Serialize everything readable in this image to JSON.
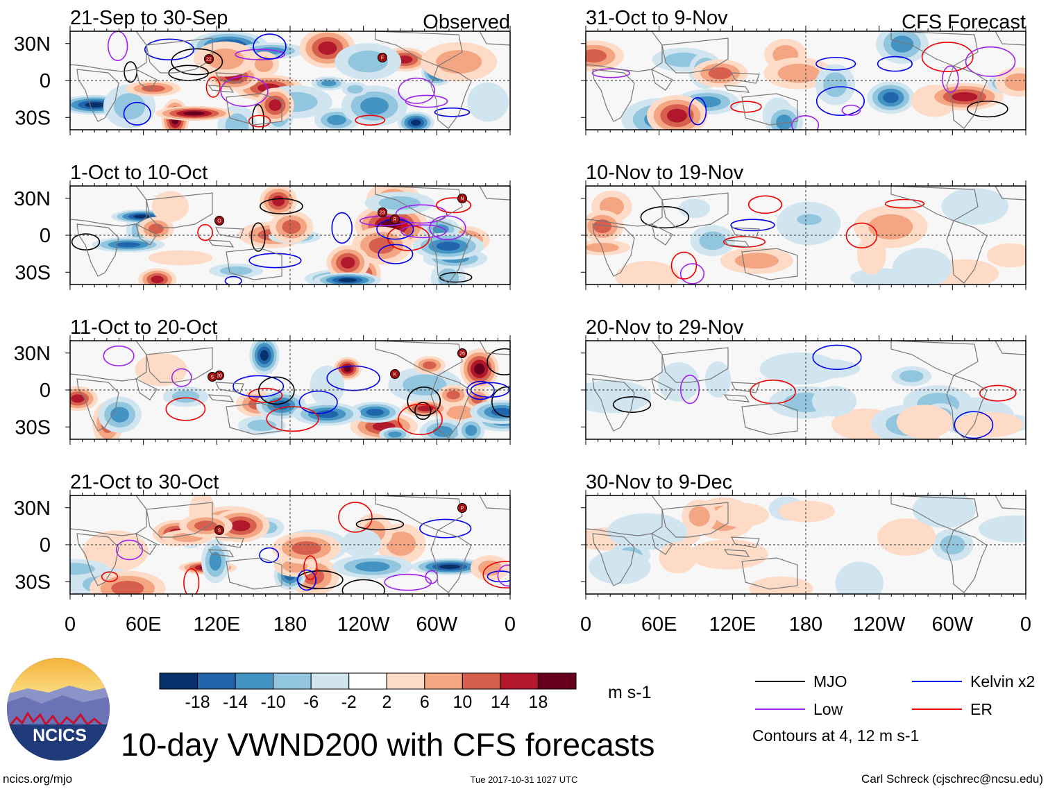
{
  "chart_data": {
    "type": "heatmap",
    "title": "10-day VWND200 with CFS forecasts",
    "variable": "VWND200",
    "units": "m s-1",
    "observed_label": "Observed",
    "forecast_label": "CFS Forecast",
    "x_ticks": [
      "0",
      "60E",
      "120E",
      "180",
      "120W",
      "60W",
      "0"
    ],
    "y_ticks": [
      "30N",
      "0",
      "30S"
    ],
    "lon_range": [
      0,
      360
    ],
    "lat_range": [
      -40,
      40
    ],
    "observed_panels": [
      {
        "period": "21-Sep to 30-Sep",
        "storms": [
          "22",
          "F"
        ]
      },
      {
        "period": "1-Oct to 10-Oct",
        "storms": [
          "23",
          "R",
          "N",
          "O"
        ]
      },
      {
        "period": "11-Oct to 20-Oct",
        "storms": [
          "K",
          "26",
          "20",
          "S"
        ]
      },
      {
        "period": "21-Oct to 30-Oct",
        "storms": [
          "P",
          "S"
        ]
      }
    ],
    "forecast_panels": [
      {
        "period": "31-Oct to 9-Nov"
      },
      {
        "period": "10-Nov to 19-Nov"
      },
      {
        "period": "20-Nov to 29-Nov"
      },
      {
        "period": "30-Nov to 9-Dec"
      }
    ],
    "colorbar": {
      "tick_labels": [
        "-18",
        "-14",
        "-10",
        "-6",
        "-2",
        "2",
        "6",
        "10",
        "14",
        "18"
      ],
      "colors": [
        "#08306b",
        "#2166ac",
        "#4393c3",
        "#92c5de",
        "#d1e5f0",
        "#ffffff",
        "#fddbc7",
        "#f4a582",
        "#d6604d",
        "#b2182b",
        "#67001f"
      ]
    },
    "legend": [
      {
        "label": "MJO",
        "color": "#000000"
      },
      {
        "label": "Kelvin x2",
        "color": "#0000ee"
      },
      {
        "label": "Low",
        "color": "#a020f0"
      },
      {
        "label": "ER",
        "color": "#ee0000"
      }
    ],
    "contour_note": "Contours at 4, 12 m s-1"
  },
  "footer": {
    "site": "ncics.org/mjo",
    "timestamp": "Tue 2017-10-31 1027 UTC",
    "author": "Carl Schreck (cjschrec@ncsu.edu)",
    "logo_text": "NCICS"
  }
}
